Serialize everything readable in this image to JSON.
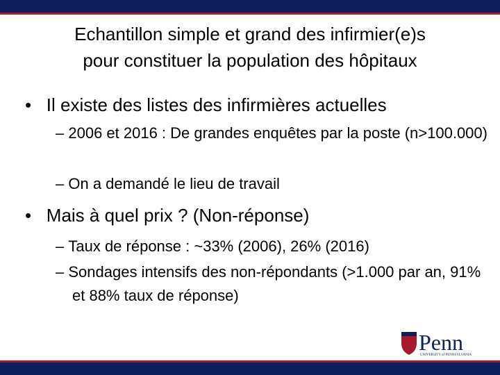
{
  "header": {
    "title_lines": [
      "Echantillon simple et grand des infirmier(e)s",
      "pour constituer la population des hôpitaux"
    ]
  },
  "bullets": [
    {
      "text": "Il existe des listes des infirmières actuelles",
      "sub": [
        "2006 et 2016 : De grandes enquêtes par la poste  (n>100.000)",
        "On a demandé le lieu de travail"
      ]
    },
    {
      "text": "Mais à quel prix ?  (Non-réponse)",
      "sub": [
        "Taux de réponse : ~33% (2006), 26% (2016)",
        "Sondages intensifs des non-répondants (>1.000 par an, 91% et 88% taux de réponse)"
      ]
    }
  ],
  "logo": {
    "name": "Penn",
    "subtitle": "UNIVERSITY of PENNSYLVANIA"
  }
}
